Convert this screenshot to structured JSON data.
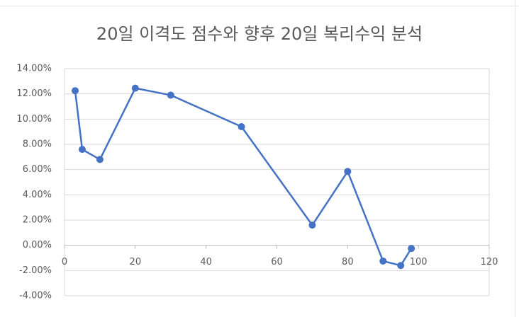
{
  "chart_data": {
    "type": "scatter-line",
    "title": "20일 이격도 점수와 향후 20일 복리수익 분석",
    "x": [
      3,
      5,
      10,
      20,
      30,
      50,
      70,
      80,
      90,
      95,
      98
    ],
    "series": [
      {
        "color": "#4472c4",
        "values": [
          12.25,
          7.6,
          6.8,
          12.45,
          11.9,
          9.4,
          1.6,
          5.85,
          -1.25,
          -1.6,
          -0.25
        ]
      }
    ],
    "xlim": [
      0,
      120
    ],
    "xticks": [
      0,
      20,
      40,
      60,
      80,
      100,
      120
    ],
    "ylim": [
      -4,
      14
    ],
    "yticks": [
      {
        "value": -4,
        "label": "-4.00%"
      },
      {
        "value": -2,
        "label": "-2.00%"
      },
      {
        "value": 0,
        "label": "0.00%"
      },
      {
        "value": 2,
        "label": "2.00%"
      },
      {
        "value": 4,
        "label": "4.00%"
      },
      {
        "value": 6,
        "label": "6.00%"
      },
      {
        "value": 8,
        "label": "8.00%"
      },
      {
        "value": 10,
        "label": "10.00%"
      },
      {
        "value": 12,
        "label": "12.00%"
      },
      {
        "value": 14,
        "label": "14.00%"
      }
    ],
    "grid": true
  }
}
